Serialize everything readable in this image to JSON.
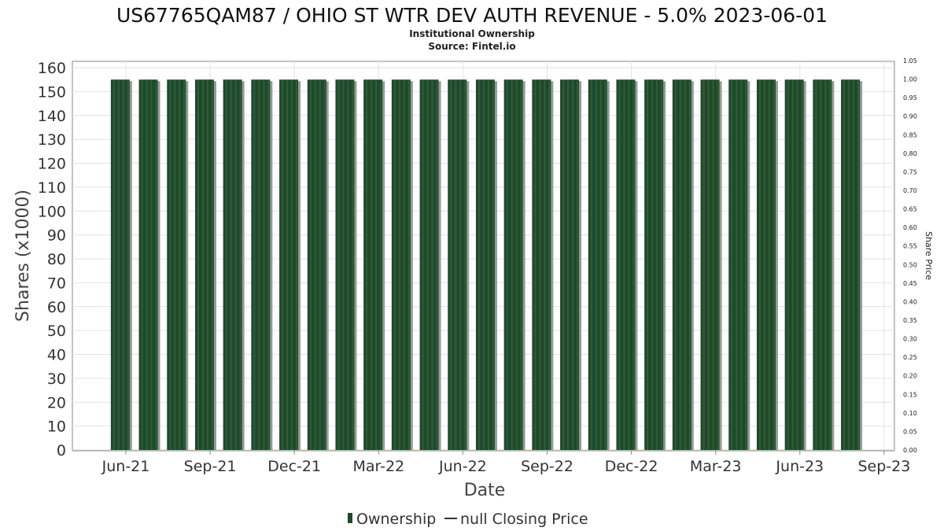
{
  "chart_data": {
    "type": "bar",
    "title": "US67765QAM87 / OHIO ST WTR DEV AUTH REVENUE - 5.0% 2023-06-01",
    "subtitle": "Institutional Ownership",
    "source": "Source: Fintel.io",
    "xlabel": "Date",
    "ylabel": "Shares (x1000)",
    "y2label": "Share Price",
    "ylim": [
      0,
      163
    ],
    "y2lim": [
      0,
      1.05
    ],
    "yticks": [
      0,
      10,
      20,
      30,
      40,
      50,
      60,
      70,
      80,
      90,
      100,
      110,
      120,
      130,
      140,
      150,
      160
    ],
    "y2ticks": [
      "0.00",
      "0.05",
      "0.10",
      "0.15",
      "0.20",
      "0.25",
      "0.30",
      "0.35",
      "0.40",
      "0.45",
      "0.50",
      "0.55",
      "0.60",
      "0.65",
      "0.70",
      "0.75",
      "0.80",
      "0.85",
      "0.90",
      "0.95",
      "1.00",
      "1.05"
    ],
    "xticks": [
      "Jun-21",
      "Sep-21",
      "Dec-21",
      "Mar-22",
      "Jun-22",
      "Sep-22",
      "Dec-22",
      "Mar-23",
      "Jun-23",
      "Sep-23"
    ],
    "grid": true,
    "legend": {
      "placement": "bottom",
      "entries": [
        "Ownership",
        "null Closing Price"
      ]
    },
    "colors": {
      "bar": "#1e4a2a",
      "shadow": "#999999"
    },
    "categories": [
      "May-21",
      "Jun-21",
      "Jul-21",
      "Aug-21",
      "Sep-21",
      "Oct-21",
      "Nov-21",
      "Dec-21",
      "Jan-22",
      "Feb-22",
      "Mar-22",
      "Apr-22",
      "May-22",
      "Jun-22",
      "Jul-22",
      "Aug-22",
      "Sep-22",
      "Oct-22",
      "Nov-22",
      "Dec-22",
      "Jan-23",
      "Feb-23",
      "Mar-23",
      "Apr-23",
      "May-23",
      "Jun-23",
      "Jul-23"
    ],
    "series": [
      {
        "name": "Ownership",
        "values": [
          155,
          155,
          155,
          155,
          155,
          155,
          155,
          155,
          155,
          155,
          155,
          155,
          155,
          155,
          155,
          155,
          155,
          155,
          155,
          155,
          155,
          155,
          155,
          155,
          155,
          155,
          155
        ]
      }
    ]
  }
}
